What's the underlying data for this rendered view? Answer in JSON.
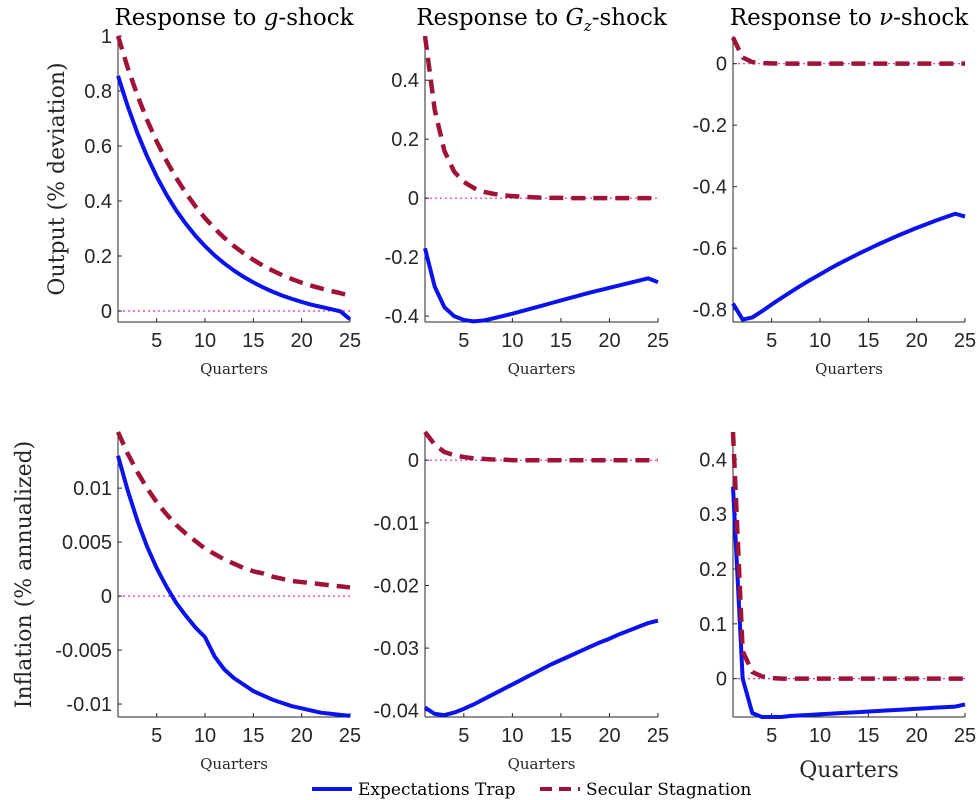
{
  "figure": {
    "legend": {
      "placement": "bottom-center",
      "items": [
        {
          "label": "Expectations Trap",
          "color": "#0a12ee",
          "style": "solid"
        },
        {
          "label": "Secular Stagnation",
          "color": "#a01338",
          "style": "dashed"
        }
      ]
    },
    "zero_line_color": "#d62ad6"
  },
  "chart_data": [
    {
      "type": "line",
      "title": "Response to g-shock",
      "title_parts": [
        "Response to ",
        "g",
        "-shock"
      ],
      "ylabel": "Output (% deviation)",
      "xlabel": "Quarters",
      "xlim": [
        1,
        25
      ],
      "ylim": [
        -0.04,
        1.0
      ],
      "xticks": [
        5,
        10,
        15,
        20,
        25
      ],
      "yticks": [
        0,
        0.2,
        0.4,
        0.6,
        0.8,
        1
      ],
      "ytick_labels": [
        "0",
        "0.2",
        "0.4",
        "0.6",
        "0.8",
        "1"
      ],
      "series": [
        {
          "name": "Expectations Trap",
          "x": [
            1,
            2,
            3,
            4,
            5,
            6,
            7,
            8,
            9,
            10,
            11,
            12,
            13,
            14,
            15,
            16,
            17,
            18,
            19,
            20,
            21,
            22,
            23,
            24,
            25
          ],
          "values": [
            0.855,
            0.745,
            0.648,
            0.563,
            0.489,
            0.424,
            0.367,
            0.318,
            0.274,
            0.236,
            0.202,
            0.173,
            0.147,
            0.124,
            0.104,
            0.086,
            0.07,
            0.056,
            0.044,
            0.033,
            0.023,
            0.015,
            0.007,
            -0.001,
            -0.03
          ]
        },
        {
          "name": "Secular Stagnation",
          "x": [
            1,
            2,
            3,
            4,
            5,
            6,
            7,
            8,
            9,
            10,
            11,
            12,
            13,
            14,
            15,
            16,
            17,
            18,
            19,
            20,
            21,
            22,
            23,
            24,
            25
          ],
          "values": [
            1.0,
            0.885,
            0.785,
            0.695,
            0.617,
            0.547,
            0.485,
            0.43,
            0.381,
            0.338,
            0.3,
            0.266,
            0.236,
            0.21,
            0.186,
            0.165,
            0.147,
            0.13,
            0.116,
            0.103,
            0.092,
            0.082,
            0.073,
            0.065,
            0.055
          ]
        }
      ]
    },
    {
      "type": "line",
      "title": "Response to Gz-shock",
      "title_parts": [
        "Response to ",
        "G",
        "z",
        "-shock"
      ],
      "xlabel": "Quarters",
      "xlim": [
        1,
        25
      ],
      "ylim": [
        -0.42,
        0.55
      ],
      "xticks": [
        5,
        10,
        15,
        20,
        25
      ],
      "yticks": [
        -0.4,
        -0.2,
        0,
        0.2,
        0.4
      ],
      "ytick_labels": [
        "-0.4",
        "-0.2",
        "0",
        "0.2",
        "0.4"
      ],
      "series": [
        {
          "name": "Expectations Trap",
          "x": [
            1,
            2,
            3,
            4,
            5,
            6,
            7,
            8,
            9,
            10,
            11,
            12,
            13,
            14,
            15,
            16,
            17,
            18,
            19,
            20,
            21,
            22,
            23,
            24,
            25
          ],
          "values": [
            -0.17,
            -0.3,
            -0.37,
            -0.4,
            -0.413,
            -0.418,
            -0.415,
            -0.408,
            -0.4,
            -0.392,
            -0.383,
            -0.374,
            -0.365,
            -0.356,
            -0.347,
            -0.338,
            -0.329,
            -0.32,
            -0.312,
            -0.304,
            -0.296,
            -0.288,
            -0.28,
            -0.272,
            -0.285
          ]
        },
        {
          "name": "Secular Stagnation",
          "x": [
            1,
            2,
            3,
            4,
            5,
            6,
            7,
            8,
            9,
            10,
            11,
            12,
            13,
            14,
            15,
            16,
            17,
            18,
            19,
            20,
            21,
            22,
            23,
            24,
            25
          ],
          "values": [
            0.55,
            0.3,
            0.16,
            0.09,
            0.055,
            0.035,
            0.022,
            0.015,
            0.01,
            0.007,
            0.005,
            0.003,
            0.002,
            0.001,
            0.001,
            0.0,
            0.0,
            0.0,
            0.0,
            0.0,
            0.0,
            0.0,
            0.0,
            0.0,
            0.0
          ]
        }
      ]
    },
    {
      "type": "line",
      "title": "Response to ν-shock",
      "title_parts": [
        "Response to ",
        "ν",
        "-shock"
      ],
      "xlabel": "Quarters",
      "xlim": [
        1,
        25
      ],
      "ylim": [
        -0.84,
        0.09
      ],
      "xticks": [
        5,
        10,
        15,
        20,
        25
      ],
      "yticks": [
        -0.8,
        -0.6,
        -0.4,
        -0.2,
        0
      ],
      "ytick_labels": [
        "-0.8",
        "-0.6",
        "-0.4",
        "-0.2",
        "0"
      ],
      "series": [
        {
          "name": "Expectations Trap",
          "x": [
            1,
            2,
            3,
            4,
            5,
            6,
            7,
            8,
            9,
            10,
            11,
            12,
            13,
            14,
            15,
            16,
            17,
            18,
            19,
            20,
            21,
            22,
            23,
            24,
            25
          ],
          "values": [
            -0.78,
            -0.832,
            -0.825,
            -0.805,
            -0.783,
            -0.762,
            -0.742,
            -0.722,
            -0.703,
            -0.685,
            -0.667,
            -0.65,
            -0.634,
            -0.618,
            -0.603,
            -0.588,
            -0.574,
            -0.56,
            -0.547,
            -0.534,
            -0.522,
            -0.51,
            -0.499,
            -0.488,
            -0.497
          ]
        },
        {
          "name": "Secular Stagnation",
          "x": [
            1,
            2,
            3,
            4,
            5,
            6,
            7,
            8,
            9,
            10,
            11,
            12,
            13,
            14,
            15,
            16,
            17,
            18,
            19,
            20,
            21,
            22,
            23,
            24,
            25
          ],
          "values": [
            0.085,
            0.02,
            0.005,
            0.002,
            0.001,
            0.0,
            0.0,
            0.0,
            0.0,
            0.0,
            0.0,
            0.0,
            0.0,
            0.0,
            0.0,
            0.0,
            0.0,
            0.0,
            0.0,
            0.0,
            0.0,
            0.0,
            0.0,
            0.0,
            0.0
          ]
        }
      ]
    },
    {
      "type": "line",
      "ylabel": "Inflation (% annualized)",
      "xlabel": "Quarters",
      "xlim": [
        1,
        25
      ],
      "ylim": [
        -0.0112,
        0.0152
      ],
      "xticks": [
        5,
        10,
        15,
        20,
        25
      ],
      "yticks": [
        -0.01,
        -0.005,
        0,
        0.005,
        0.01
      ],
      "ytick_labels": [
        "-0.01",
        "-0.005",
        "0",
        "0.005",
        "0.01"
      ],
      "series": [
        {
          "name": "Expectations Trap",
          "x": [
            1,
            2,
            3,
            4,
            5,
            6,
            7,
            8,
            9,
            10,
            11,
            12,
            13,
            14,
            15,
            16,
            17,
            18,
            19,
            20,
            21,
            22,
            23,
            24,
            25
          ],
          "values": [
            0.013,
            0.0098,
            0.007,
            0.0046,
            0.0026,
            0.0009,
            -0.0006,
            -0.0018,
            -0.0029,
            -0.0038,
            -0.0056,
            -0.0068,
            -0.0076,
            -0.0082,
            -0.0088,
            -0.0092,
            -0.0096,
            -0.0099,
            -0.0102,
            -0.0104,
            -0.0106,
            -0.0108,
            -0.0109,
            -0.011,
            -0.0111
          ]
        },
        {
          "name": "Secular Stagnation",
          "x": [
            1,
            2,
            3,
            4,
            5,
            6,
            7,
            8,
            9,
            10,
            11,
            12,
            13,
            14,
            15,
            16,
            17,
            18,
            19,
            20,
            21,
            22,
            23,
            24,
            25
          ],
          "values": [
            0.0152,
            0.0132,
            0.0115,
            0.01,
            0.0087,
            0.0076,
            0.0066,
            0.0058,
            0.0051,
            0.0044,
            0.0039,
            0.0034,
            0.003,
            0.0026,
            0.0023,
            0.0021,
            0.0018,
            0.0016,
            0.0014,
            0.0013,
            0.0012,
            0.0011,
            0.001,
            0.0009,
            0.0008
          ]
        }
      ]
    },
    {
      "type": "line",
      "xlabel": "Quarters",
      "xlim": [
        1,
        25
      ],
      "ylim": [
        -0.041,
        0.0045
      ],
      "xticks": [
        5,
        10,
        15,
        20,
        25
      ],
      "yticks": [
        -0.04,
        -0.03,
        -0.02,
        -0.01,
        0
      ],
      "ytick_labels": [
        "-0.04",
        "-0.03",
        "-0.02",
        "-0.01",
        "0"
      ],
      "series": [
        {
          "name": "Expectations Trap",
          "x": [
            1,
            2,
            3,
            4,
            5,
            6,
            7,
            8,
            9,
            10,
            11,
            12,
            13,
            14,
            15,
            16,
            17,
            18,
            19,
            20,
            21,
            22,
            23,
            24,
            25
          ],
          "values": [
            -0.0395,
            -0.0405,
            -0.0407,
            -0.0403,
            -0.0397,
            -0.039,
            -0.0382,
            -0.0374,
            -0.0366,
            -0.0358,
            -0.035,
            -0.0342,
            -0.0334,
            -0.0326,
            -0.0319,
            -0.0312,
            -0.0305,
            -0.0298,
            -0.0291,
            -0.0285,
            -0.0278,
            -0.0272,
            -0.0266,
            -0.026,
            -0.0256
          ]
        },
        {
          "name": "Secular Stagnation",
          "x": [
            1,
            2,
            3,
            4,
            5,
            6,
            7,
            8,
            9,
            10,
            11,
            12,
            13,
            14,
            15,
            16,
            17,
            18,
            19,
            20,
            21,
            22,
            23,
            24,
            25
          ],
          "values": [
            0.0045,
            0.0025,
            0.0013,
            0.0008,
            0.0005,
            0.0003,
            0.0002,
            0.0001,
            0.0001,
            0.0,
            0.0,
            0.0,
            0.0,
            0.0,
            0.0,
            0.0,
            0.0,
            0.0,
            0.0,
            0.0,
            0.0,
            0.0,
            0.0,
            0.0,
            0.0
          ]
        }
      ]
    },
    {
      "type": "line",
      "xlabel": "Quarters",
      "xlim": [
        1,
        25
      ],
      "ylim": [
        -0.07,
        0.45
      ],
      "xticks": [
        5,
        10,
        15,
        20,
        25
      ],
      "yticks": [
        0,
        0.1,
        0.2,
        0.3,
        0.4
      ],
      "ytick_labels": [
        "0",
        "0.1",
        "0.2",
        "0.3",
        "0.4"
      ],
      "series": [
        {
          "name": "Expectations Trap",
          "x": [
            1,
            2,
            3,
            4,
            5,
            6,
            7,
            8,
            9,
            10,
            11,
            12,
            13,
            14,
            15,
            16,
            17,
            18,
            19,
            20,
            21,
            22,
            23,
            24,
            25
          ],
          "values": [
            0.35,
            0.0,
            -0.063,
            -0.07,
            -0.071,
            -0.07,
            -0.068,
            -0.067,
            -0.066,
            -0.065,
            -0.064,
            -0.063,
            -0.062,
            -0.061,
            -0.06,
            -0.059,
            -0.058,
            -0.057,
            -0.056,
            -0.055,
            -0.054,
            -0.053,
            -0.052,
            -0.051,
            -0.047
          ]
        },
        {
          "name": "Secular Stagnation",
          "x": [
            1,
            2,
            3,
            4,
            5,
            6,
            7,
            8,
            9,
            10,
            11,
            12,
            13,
            14,
            15,
            16,
            17,
            18,
            19,
            20,
            21,
            22,
            23,
            24,
            25
          ],
          "values": [
            0.45,
            0.05,
            0.012,
            0.004,
            0.001,
            0.0,
            0.0,
            0.0,
            0.0,
            0.0,
            0.0,
            0.0,
            0.0,
            0.0,
            0.0,
            0.0,
            0.0,
            0.0,
            0.0,
            0.0,
            0.0,
            0.0,
            0.0,
            0.0,
            0.0
          ]
        }
      ]
    }
  ]
}
